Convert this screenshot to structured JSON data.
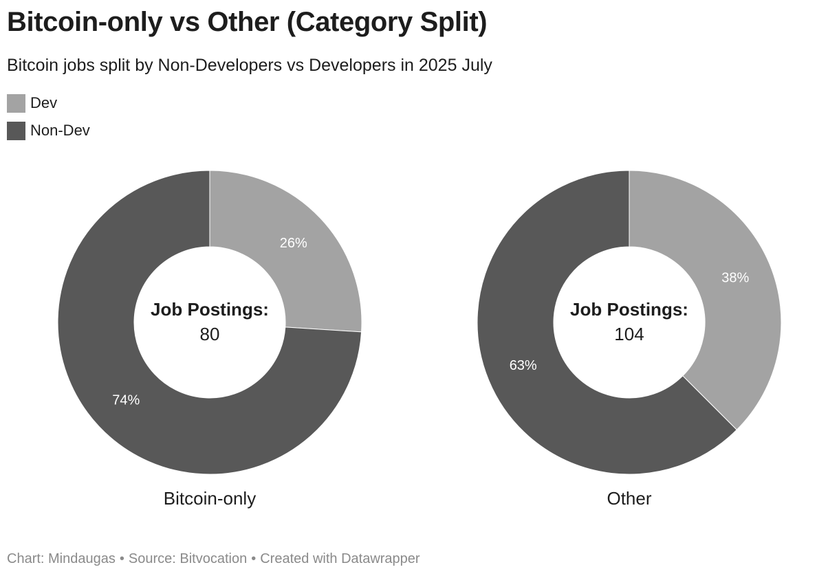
{
  "title": "Bitcoin-only vs Other (Category Split)",
  "subtitle": "Bitcoin jobs split by Non-Developers vs Developers in 2025 July",
  "legend": [
    {
      "label": "Dev",
      "color": "#a3a3a3"
    },
    {
      "label": "Non-Dev",
      "color": "#585858"
    }
  ],
  "center_label": "Job Postings:",
  "footer": {
    "chart": "Chart: Mindaugas",
    "source": "Source: Bitvocation",
    "created": "Created with Datawrapper",
    "separator": "•"
  },
  "chart_data": [
    {
      "type": "pie",
      "variant": "donut",
      "title": "Bitcoin-only",
      "total": 80,
      "slices": [
        {
          "label": "Dev",
          "percent": 26,
          "color": "#a3a3a3",
          "value_label": "26%"
        },
        {
          "label": "Non-Dev",
          "percent": 74,
          "color": "#585858",
          "value_label": "74%"
        }
      ]
    },
    {
      "type": "pie",
      "variant": "donut",
      "title": "Other",
      "total": 104,
      "slices": [
        {
          "label": "Dev",
          "percent": 37.5,
          "color": "#a3a3a3",
          "value_label": "38%"
        },
        {
          "label": "Non-Dev",
          "percent": 62.5,
          "color": "#585858",
          "value_label": "63%"
        }
      ]
    }
  ]
}
